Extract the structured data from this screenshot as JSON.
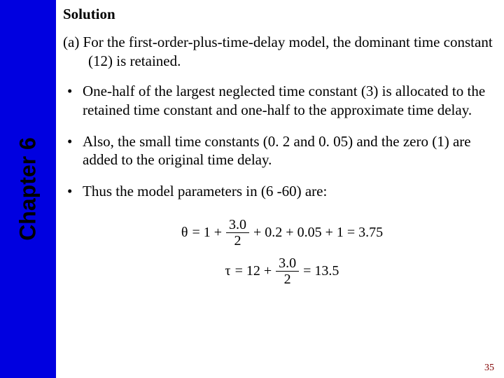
{
  "sidebar": {
    "label": "Chapter 6"
  },
  "heading": "Solution",
  "paragraph_a": "(a) For the first-order-plus-time-delay model, the dominant time constant (12) is retained.",
  "bullets": [
    "One-half of the largest neglected time constant (3) is allocated to the retained time constant and one-half to the approximate time delay.",
    "Also, the small time constants (0. 2 and 0. 05) and the zero (1) are added to the original time delay.",
    "Thus the model parameters in (6 -60) are:"
  ],
  "eq": {
    "theta": {
      "sym": "θ",
      "lead": "= 1 +",
      "num": "3.0",
      "den": "2",
      "tail": "+ 0.2 + 0.05 + 1 = 3.75"
    },
    "tau": {
      "sym": "τ",
      "lead": "= 12 +",
      "num": "3.0",
      "den": "2",
      "tail": "= 13.5"
    }
  },
  "page_number": "35"
}
